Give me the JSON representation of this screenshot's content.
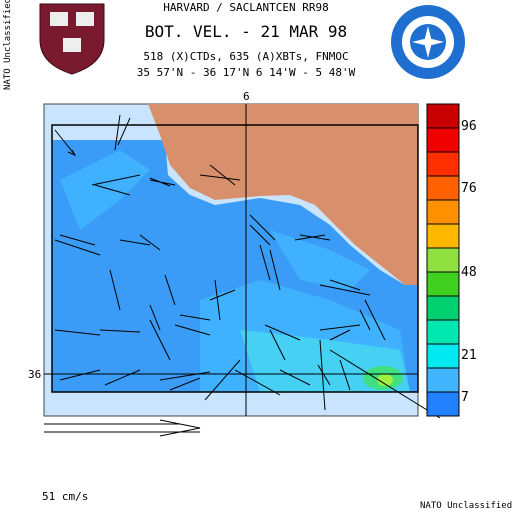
{
  "header": {
    "line1": "HARVARD / SACLANTCEN RR98",
    "title": "BOT. VEL. - 21 MAR 98",
    "line3": "518 (X)CTDs, 635 (A)XBTs, FNMOC",
    "line4": "35 57'N - 36 17'N  6 14'W - 5 48'W"
  },
  "map": {
    "lon_label": "6",
    "lat_label": "36"
  },
  "colorbar": {
    "labels": [
      "96",
      "76",
      "48",
      "21",
      "7"
    ]
  },
  "scale": {
    "label": "51 cm/s"
  },
  "classification": {
    "bottom": "NATO Unclassified",
    "side": "NATO Unclassified"
  }
}
